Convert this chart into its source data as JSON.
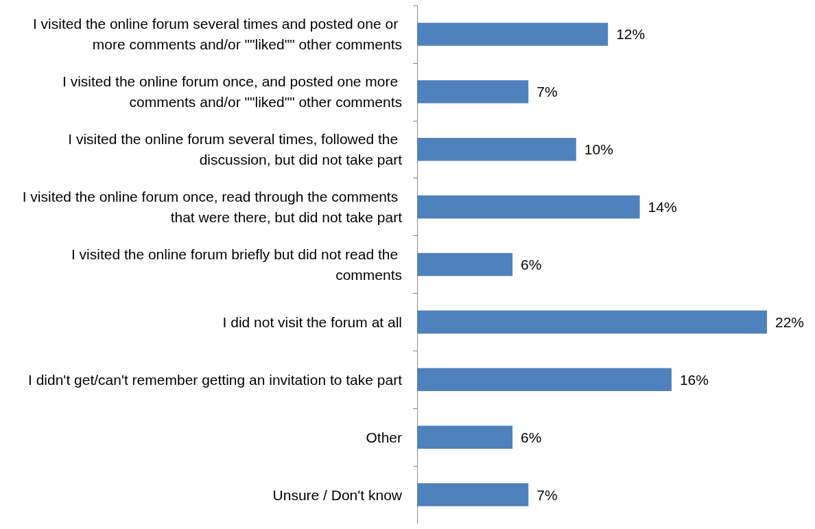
{
  "chart_data": {
    "type": "bar",
    "orientation": "horizontal",
    "categories": [
      "I visited the online forum several times and posted one or more comments and/or \"\"liked\"\" other comments",
      "I visited the online forum once, and posted one more comments and/or \"\"liked\"\" other comments",
      "I visited the online forum several times, followed the discussion, but did not take part",
      "I visited the online forum once, read through the comments that were there, but did not take part",
      "I visited the online forum briefly but did not read the comments",
      "I did not visit the forum at all",
      "I didn't get/can't remember getting an invitation to take part",
      "Other",
      "Unsure / Don't know"
    ],
    "values": [
      12,
      7,
      10,
      14,
      6,
      22,
      16,
      6,
      7
    ],
    "value_labels": [
      "12%",
      "7%",
      "10%",
      "14%",
      "6%",
      "22%",
      "16%",
      "6%",
      "7%"
    ],
    "color": "#4f81bd"
  }
}
